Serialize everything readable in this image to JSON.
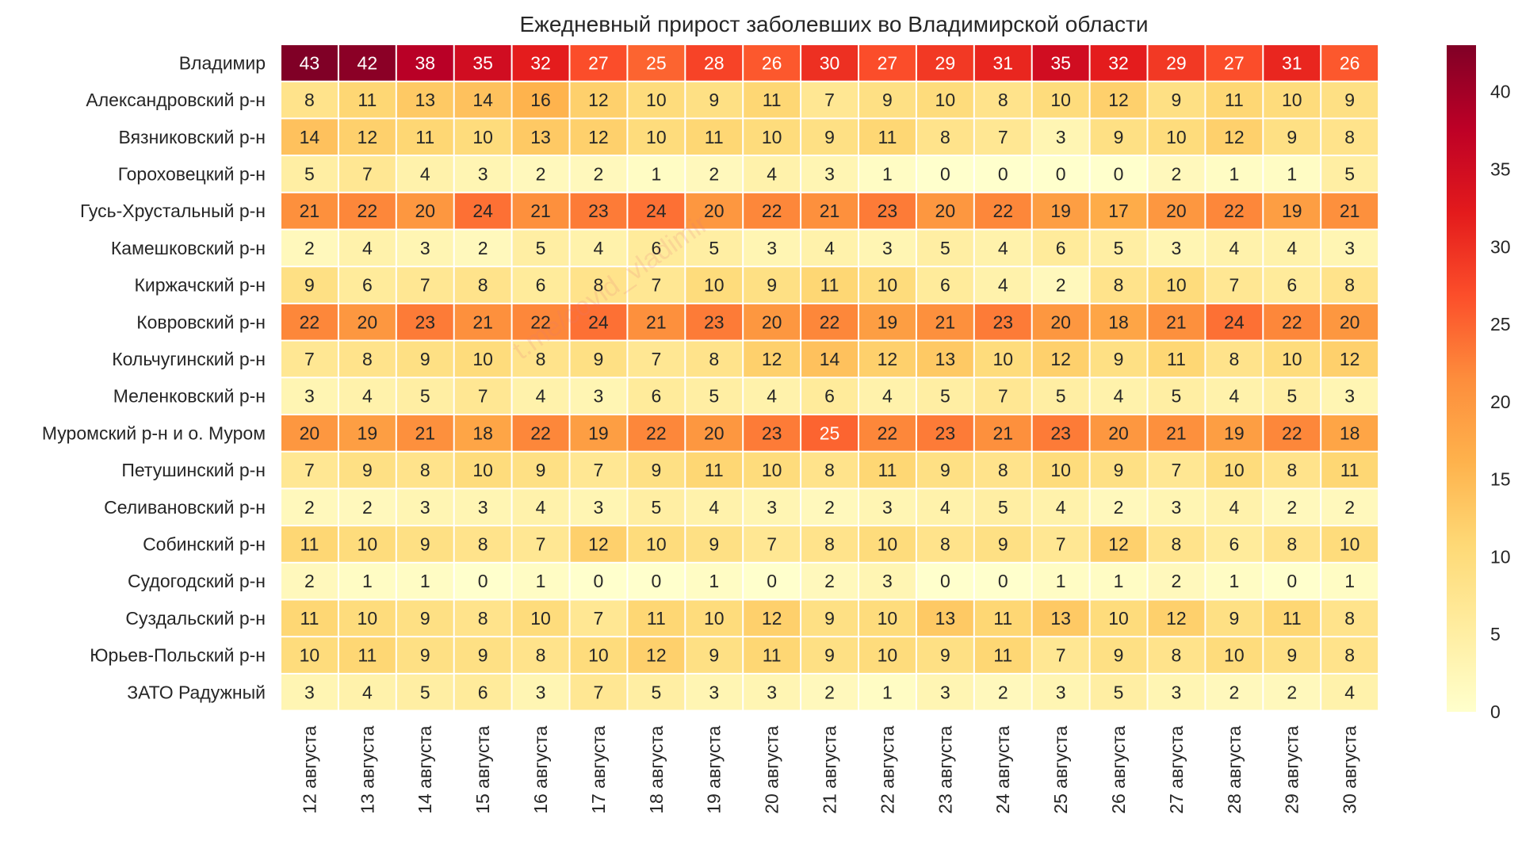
{
  "watermark": "t.me/covid_vladimir",
  "chart_data": {
    "type": "heatmap",
    "title": "Ежедневный прирост заболевших во Владимирской области",
    "xlabel": "",
    "ylabel": "",
    "rows": [
      "Владимир",
      "Александровский р-н",
      "Вязниковский р-н",
      "Гороховецкий р-н",
      "Гусь-Хрустальный р-н",
      "Камешковский р-н",
      "Киржачский р-н",
      "Ковровский р-н",
      "Кольчугинский р-н",
      "Меленковский р-н",
      "Муромский р-н и о. Муром",
      "Петушинский р-н",
      "Селивановский р-н",
      "Собинский р-н",
      "Судогодский р-н",
      "Суздальский р-н",
      "Юрьев-Польский р-н",
      "ЗАТО Радужный"
    ],
    "columns": [
      "12 августа",
      "13 августа",
      "14 августа",
      "15 августа",
      "16 августа",
      "17 августа",
      "18 августа",
      "19 августа",
      "20 августа",
      "21 августа",
      "22 августа",
      "23 августа",
      "24 августа",
      "25 августа",
      "26 августа",
      "27 августа",
      "28 августа",
      "29 августа",
      "30 августа"
    ],
    "values": [
      [
        43,
        42,
        38,
        35,
        32,
        27,
        25,
        28,
        26,
        30,
        27,
        29,
        31,
        35,
        32,
        29,
        27,
        31,
        26
      ],
      [
        8,
        11,
        13,
        14,
        16,
        12,
        10,
        9,
        11,
        7,
        9,
        10,
        8,
        10,
        12,
        9,
        11,
        10,
        9
      ],
      [
        14,
        12,
        11,
        10,
        13,
        12,
        10,
        11,
        10,
        9,
        11,
        8,
        7,
        3,
        9,
        10,
        12,
        9,
        8
      ],
      [
        5,
        7,
        4,
        3,
        2,
        2,
        1,
        2,
        4,
        3,
        1,
        0,
        0,
        0,
        0,
        2,
        1,
        1,
        5
      ],
      [
        21,
        22,
        20,
        24,
        21,
        23,
        24,
        20,
        22,
        21,
        23,
        20,
        22,
        19,
        17,
        20,
        22,
        19,
        21
      ],
      [
        2,
        4,
        3,
        2,
        5,
        4,
        6,
        5,
        3,
        4,
        3,
        5,
        4,
        6,
        5,
        3,
        4,
        4,
        3
      ],
      [
        9,
        6,
        7,
        8,
        6,
        8,
        7,
        10,
        9,
        11,
        10,
        6,
        4,
        2,
        8,
        10,
        7,
        6,
        8
      ],
      [
        22,
        20,
        23,
        21,
        22,
        24,
        21,
        23,
        20,
        22,
        19,
        21,
        23,
        20,
        18,
        21,
        24,
        22,
        20
      ],
      [
        7,
        8,
        9,
        10,
        8,
        9,
        7,
        8,
        12,
        14,
        12,
        13,
        10,
        12,
        9,
        11,
        8,
        10,
        12
      ],
      [
        3,
        4,
        5,
        7,
        4,
        3,
        6,
        5,
        4,
        6,
        4,
        5,
        7,
        5,
        4,
        5,
        4,
        5,
        3
      ],
      [
        20,
        19,
        21,
        18,
        22,
        19,
        22,
        20,
        23,
        25,
        22,
        23,
        21,
        23,
        20,
        21,
        19,
        22,
        18
      ],
      [
        7,
        9,
        8,
        10,
        9,
        7,
        9,
        11,
        10,
        8,
        11,
        9,
        8,
        10,
        9,
        7,
        10,
        8,
        11
      ],
      [
        2,
        2,
        3,
        3,
        4,
        3,
        5,
        4,
        3,
        2,
        3,
        4,
        5,
        4,
        2,
        3,
        4,
        2,
        2
      ],
      [
        11,
        10,
        9,
        8,
        7,
        12,
        10,
        9,
        7,
        8,
        10,
        8,
        9,
        7,
        12,
        8,
        6,
        8,
        10
      ],
      [
        2,
        1,
        1,
        0,
        1,
        0,
        0,
        1,
        0,
        2,
        3,
        0,
        0,
        1,
        1,
        2,
        1,
        0,
        1
      ],
      [
        11,
        10,
        9,
        8,
        10,
        7,
        11,
        10,
        12,
        9,
        10,
        13,
        11,
        13,
        10,
        12,
        9,
        11,
        8
      ],
      [
        10,
        11,
        9,
        9,
        8,
        10,
        12,
        9,
        11,
        9,
        10,
        9,
        11,
        7,
        9,
        8,
        10,
        9,
        8
      ],
      [
        3,
        4,
        5,
        6,
        3,
        7,
        5,
        3,
        3,
        2,
        1,
        3,
        2,
        3,
        5,
        3,
        2,
        2,
        4
      ]
    ],
    "colorbar": {
      "min": 0,
      "max": 43,
      "ticks": [
        0,
        5,
        10,
        15,
        20,
        25,
        30,
        35,
        40
      ],
      "colormap": [
        "#ffffcc",
        "#ffeda0",
        "#fed976",
        "#feb24c",
        "#fd8d3c",
        "#fc4e2a",
        "#e31a1c",
        "#bd0026",
        "#800026"
      ]
    },
    "annotations": "cell values shown in each cell",
    "grid": false
  }
}
